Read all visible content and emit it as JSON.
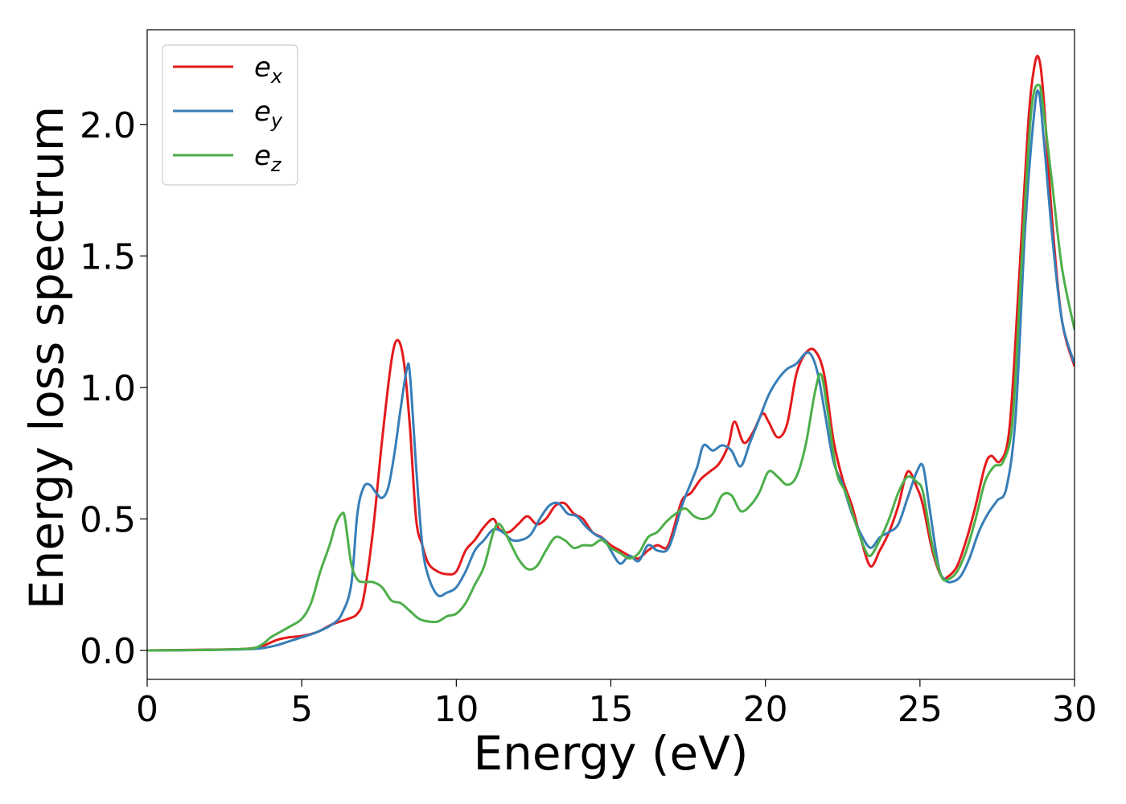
{
  "chart_data": {
    "type": "line",
    "xlabel": "Energy (eV)",
    "ylabel": "Energy loss spectrum",
    "xlim": [
      0,
      30
    ],
    "ylim": [
      -0.11,
      2.36
    ],
    "xticks": [
      0,
      5,
      10,
      15,
      20,
      25,
      30
    ],
    "xtick_labels": [
      "0",
      "5",
      "10",
      "15",
      "20",
      "25",
      "30"
    ],
    "yticks": [
      0.0,
      0.5,
      1.0,
      1.5,
      2.0
    ],
    "ytick_labels": [
      "0.0",
      "0.5",
      "1.0",
      "1.5",
      "2.0"
    ],
    "grid": false,
    "legend_position": "top-left",
    "series": [
      {
        "name": "e_x",
        "label_main": "e",
        "label_sub": "x",
        "color": "#e41a1c",
        "x": [
          0,
          2,
          3,
          3.5,
          3.8,
          4.2,
          4.6,
          5.0,
          5.5,
          6.0,
          6.5,
          6.8,
          7.0,
          7.3,
          7.6,
          7.9,
          8.1,
          8.3,
          8.5,
          8.7,
          8.9,
          9.1,
          9.4,
          9.7,
          10.0,
          10.3,
          10.6,
          10.9,
          11.2,
          11.4,
          11.7,
          12.0,
          12.3,
          12.6,
          12.9,
          13.2,
          13.5,
          13.8,
          14.1,
          14.4,
          14.7,
          15.0,
          15.3,
          15.6,
          15.9,
          16.2,
          16.5,
          16.8,
          17.0,
          17.3,
          17.6,
          17.9,
          18.2,
          18.5,
          18.8,
          19.0,
          19.3,
          19.6,
          19.9,
          20.1,
          20.4,
          20.7,
          21.0,
          21.3,
          21.6,
          21.9,
          22.2,
          22.5,
          22.8,
          23.1,
          23.4,
          23.7,
          24.0,
          24.3,
          24.6,
          24.9,
          25.1,
          25.4,
          25.7,
          25.9,
          26.2,
          26.5,
          26.8,
          27.1,
          27.3,
          27.6,
          27.9,
          28.2,
          28.5,
          28.7,
          28.85,
          29.0,
          29.3,
          29.6,
          30.0
        ],
        "values": [
          0.0,
          0.003,
          0.005,
          0.01,
          0.02,
          0.04,
          0.05,
          0.055,
          0.07,
          0.1,
          0.12,
          0.14,
          0.2,
          0.45,
          0.8,
          1.1,
          1.18,
          1.1,
          0.85,
          0.5,
          0.4,
          0.33,
          0.3,
          0.29,
          0.3,
          0.38,
          0.42,
          0.47,
          0.5,
          0.46,
          0.45,
          0.48,
          0.51,
          0.48,
          0.5,
          0.55,
          0.56,
          0.52,
          0.5,
          0.45,
          0.43,
          0.4,
          0.38,
          0.36,
          0.35,
          0.38,
          0.4,
          0.39,
          0.45,
          0.57,
          0.6,
          0.65,
          0.68,
          0.71,
          0.78,
          0.87,
          0.79,
          0.83,
          0.9,
          0.87,
          0.81,
          0.86,
          1.05,
          1.13,
          1.14,
          1.05,
          0.8,
          0.65,
          0.55,
          0.42,
          0.32,
          0.38,
          0.45,
          0.55,
          0.68,
          0.62,
          0.55,
          0.38,
          0.28,
          0.28,
          0.32,
          0.42,
          0.55,
          0.7,
          0.74,
          0.72,
          0.85,
          1.4,
          2.0,
          2.22,
          2.25,
          2.1,
          1.6,
          1.25,
          1.08
        ]
      },
      {
        "name": "e_y",
        "label_main": "e",
        "label_sub": "y",
        "color": "#377eb8",
        "x": [
          0,
          2,
          3,
          3.5,
          3.8,
          4.2,
          4.6,
          5.0,
          5.5,
          6.0,
          6.3,
          6.6,
          6.8,
          7.0,
          7.2,
          7.4,
          7.6,
          7.8,
          8.0,
          8.2,
          8.4,
          8.5,
          8.7,
          8.9,
          9.1,
          9.4,
          9.7,
          10.0,
          10.3,
          10.6,
          10.9,
          11.2,
          11.5,
          11.8,
          12.1,
          12.4,
          12.7,
          13.0,
          13.3,
          13.6,
          13.9,
          14.2,
          14.5,
          14.8,
          15.0,
          15.3,
          15.6,
          15.9,
          16.2,
          16.5,
          16.8,
          17.0,
          17.3,
          17.6,
          17.8,
          18.0,
          18.3,
          18.6,
          18.9,
          19.2,
          19.5,
          19.8,
          20.1,
          20.4,
          20.7,
          21.0,
          21.3,
          21.5,
          21.7,
          21.9,
          22.2,
          22.5,
          22.8,
          23.1,
          23.4,
          23.7,
          24.0,
          24.3,
          24.6,
          24.9,
          25.1,
          25.3,
          25.6,
          25.8,
          26.0,
          26.3,
          26.6,
          26.9,
          27.2,
          27.5,
          27.8,
          28.1,
          28.4,
          28.7,
          28.85,
          29.0,
          29.3,
          29.6,
          30.0
        ],
        "values": [
          0.0,
          0.002,
          0.004,
          0.006,
          0.01,
          0.02,
          0.035,
          0.05,
          0.07,
          0.1,
          0.14,
          0.25,
          0.52,
          0.62,
          0.63,
          0.6,
          0.58,
          0.62,
          0.75,
          0.92,
          1.07,
          1.05,
          0.7,
          0.4,
          0.28,
          0.21,
          0.22,
          0.24,
          0.3,
          0.38,
          0.42,
          0.46,
          0.45,
          0.42,
          0.42,
          0.44,
          0.5,
          0.55,
          0.56,
          0.52,
          0.51,
          0.47,
          0.44,
          0.42,
          0.38,
          0.33,
          0.36,
          0.34,
          0.4,
          0.38,
          0.38,
          0.43,
          0.55,
          0.64,
          0.7,
          0.78,
          0.76,
          0.78,
          0.76,
          0.7,
          0.79,
          0.88,
          0.97,
          1.03,
          1.07,
          1.09,
          1.13,
          1.12,
          1.05,
          0.92,
          0.72,
          0.63,
          0.52,
          0.44,
          0.39,
          0.43,
          0.45,
          0.48,
          0.58,
          0.68,
          0.7,
          0.55,
          0.32,
          0.27,
          0.26,
          0.28,
          0.35,
          0.45,
          0.52,
          0.57,
          0.62,
          0.9,
          1.6,
          2.05,
          2.12,
          1.95,
          1.55,
          1.25,
          1.09
        ]
      },
      {
        "name": "e_z",
        "label_main": "e",
        "label_sub": "z",
        "color": "#4daf4a",
        "x": [
          0,
          2,
          3,
          3.5,
          3.8,
          4.0,
          4.3,
          4.6,
          5.0,
          5.3,
          5.6,
          5.9,
          6.1,
          6.3,
          6.4,
          6.6,
          6.8,
          7.0,
          7.3,
          7.6,
          7.9,
          8.2,
          8.5,
          8.8,
          9.1,
          9.4,
          9.7,
          10.0,
          10.3,
          10.6,
          10.9,
          11.2,
          11.4,
          11.7,
          12.0,
          12.3,
          12.6,
          12.9,
          13.2,
          13.5,
          13.8,
          14.1,
          14.4,
          14.7,
          15.0,
          15.3,
          15.6,
          15.9,
          16.2,
          16.5,
          16.8,
          17.1,
          17.4,
          17.7,
          18.0,
          18.3,
          18.6,
          18.9,
          19.2,
          19.5,
          19.8,
          20.1,
          20.4,
          20.7,
          21.0,
          21.3,
          21.6,
          21.8,
          22.0,
          22.3,
          22.6,
          22.9,
          23.2,
          23.4,
          23.7,
          24.0,
          24.3,
          24.6,
          24.9,
          25.1,
          25.4,
          25.7,
          25.9,
          26.2,
          26.5,
          26.8,
          27.1,
          27.4,
          27.7,
          28.0,
          28.3,
          28.6,
          28.85,
          29.0,
          29.3,
          29.6,
          30.0
        ],
        "values": [
          0.0,
          0.002,
          0.005,
          0.01,
          0.03,
          0.05,
          0.07,
          0.09,
          0.12,
          0.18,
          0.3,
          0.4,
          0.48,
          0.52,
          0.5,
          0.33,
          0.27,
          0.26,
          0.26,
          0.24,
          0.19,
          0.18,
          0.15,
          0.12,
          0.11,
          0.11,
          0.13,
          0.14,
          0.18,
          0.25,
          0.32,
          0.45,
          0.48,
          0.42,
          0.35,
          0.31,
          0.32,
          0.38,
          0.43,
          0.42,
          0.39,
          0.4,
          0.4,
          0.42,
          0.39,
          0.37,
          0.35,
          0.37,
          0.43,
          0.45,
          0.49,
          0.52,
          0.54,
          0.51,
          0.5,
          0.52,
          0.59,
          0.59,
          0.53,
          0.55,
          0.6,
          0.68,
          0.66,
          0.63,
          0.66,
          0.78,
          0.98,
          1.05,
          0.92,
          0.68,
          0.6,
          0.49,
          0.39,
          0.36,
          0.42,
          0.5,
          0.6,
          0.66,
          0.64,
          0.6,
          0.4,
          0.28,
          0.27,
          0.3,
          0.38,
          0.5,
          0.64,
          0.7,
          0.72,
          0.88,
          1.5,
          2.05,
          2.15,
          2.05,
          1.75,
          1.45,
          1.22
        ]
      }
    ]
  }
}
